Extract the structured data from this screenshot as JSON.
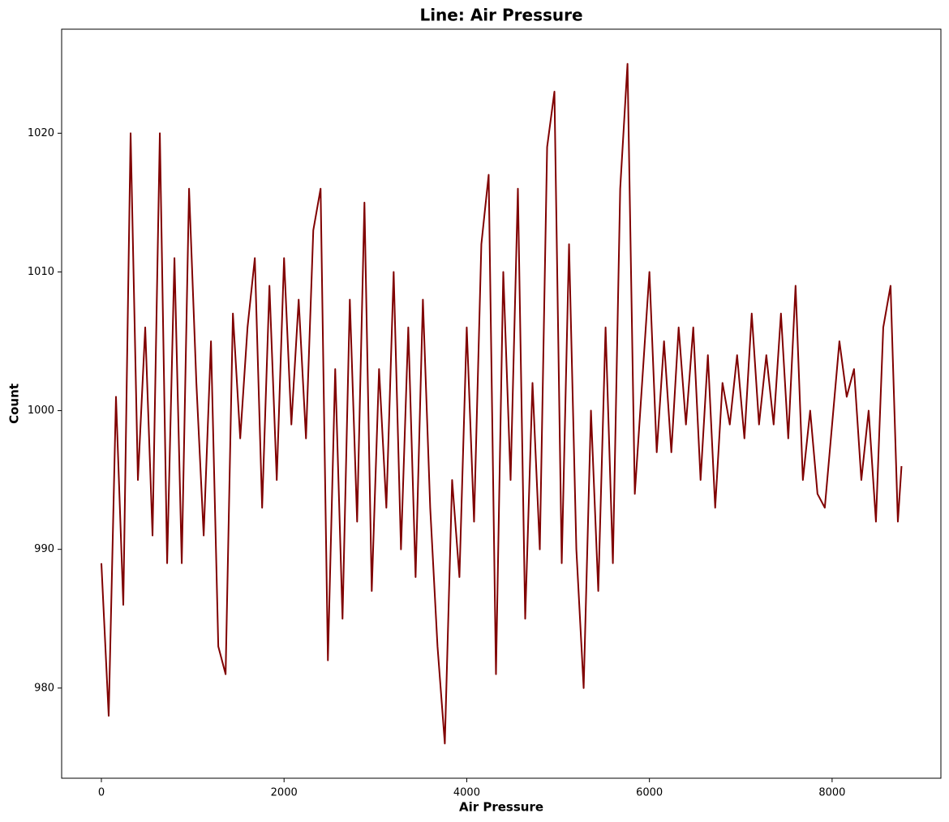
{
  "chart_data": {
    "type": "line",
    "title": "Line: Air Pressure",
    "x_label": "Air Pressure",
    "y_label": "Count",
    "x": [
      0,
      80,
      160,
      240,
      320,
      400,
      480,
      560,
      640,
      720,
      800,
      880,
      960,
      1040,
      1120,
      1200,
      1280,
      1360,
      1440,
      1520,
      1600,
      1680,
      1760,
      1840,
      1920,
      2000,
      2080,
      2160,
      2240,
      2320,
      2400,
      2480,
      2560,
      2640,
      2720,
      2800,
      2880,
      2960,
      3040,
      3120,
      3200,
      3280,
      3360,
      3440,
      3520,
      3600,
      3680,
      3760,
      3840,
      3920,
      4000,
      4080,
      4160,
      4240,
      4320,
      4400,
      4480,
      4560,
      4640,
      4720,
      4800,
      4880,
      4960,
      5040,
      5120,
      5200,
      5280,
      5360,
      5440,
      5520,
      5600,
      5680,
      5760,
      5840,
      5920,
      6000,
      6080,
      6160,
      6240,
      6320,
      6400,
      6480,
      6560,
      6640,
      6720,
      6800,
      6880,
      6960,
      7040,
      7120,
      7200,
      7280,
      7360,
      7440,
      7520,
      7600,
      7680,
      7760,
      7840,
      7920,
      8000,
      8080,
      8160,
      8240,
      8320,
      8400,
      8480,
      8560,
      8640,
      8720,
      8760
    ],
    "series": [
      {
        "color": "#800000",
        "values": [
          989,
          978,
          1001,
          986,
          1020,
          995,
          1006,
          991,
          1020,
          989,
          1011,
          989,
          1016,
          1002,
          991,
          1005,
          983,
          981,
          1007,
          998,
          1006,
          1011,
          993,
          1009,
          995,
          1011,
          999,
          1008,
          998,
          1013,
          1016,
          982,
          1003,
          985,
          1008,
          992,
          1015,
          987,
          1003,
          993,
          1010,
          990,
          1006,
          988,
          1008,
          993,
          983,
          976,
          995,
          988,
          1006,
          992,
          1012,
          1017,
          981,
          1010,
          995,
          1016,
          985,
          1002,
          990,
          1019,
          1023,
          989,
          1012,
          990,
          980,
          1000,
          987,
          1006,
          989,
          1016,
          1025,
          994,
          1002,
          1010,
          997,
          1005,
          997,
          1006,
          999,
          1006,
          995,
          1004,
          993,
          1002,
          999,
          1004,
          998,
          1007,
          999,
          1004,
          999,
          1007,
          998,
          1009,
          995,
          1000,
          994,
          993,
          999,
          1005,
          1001,
          1003,
          995,
          1000,
          992,
          1006,
          1009,
          992,
          996
        ]
      }
    ],
    "xlim": [
      -435,
      9191
    ],
    "ylim": [
      973.5,
      1027.5
    ],
    "xticks": [
      0,
      2000,
      4000,
      6000,
      8000
    ],
    "yticks": [
      980,
      990,
      1000,
      1010,
      1020
    ],
    "grid": false
  }
}
